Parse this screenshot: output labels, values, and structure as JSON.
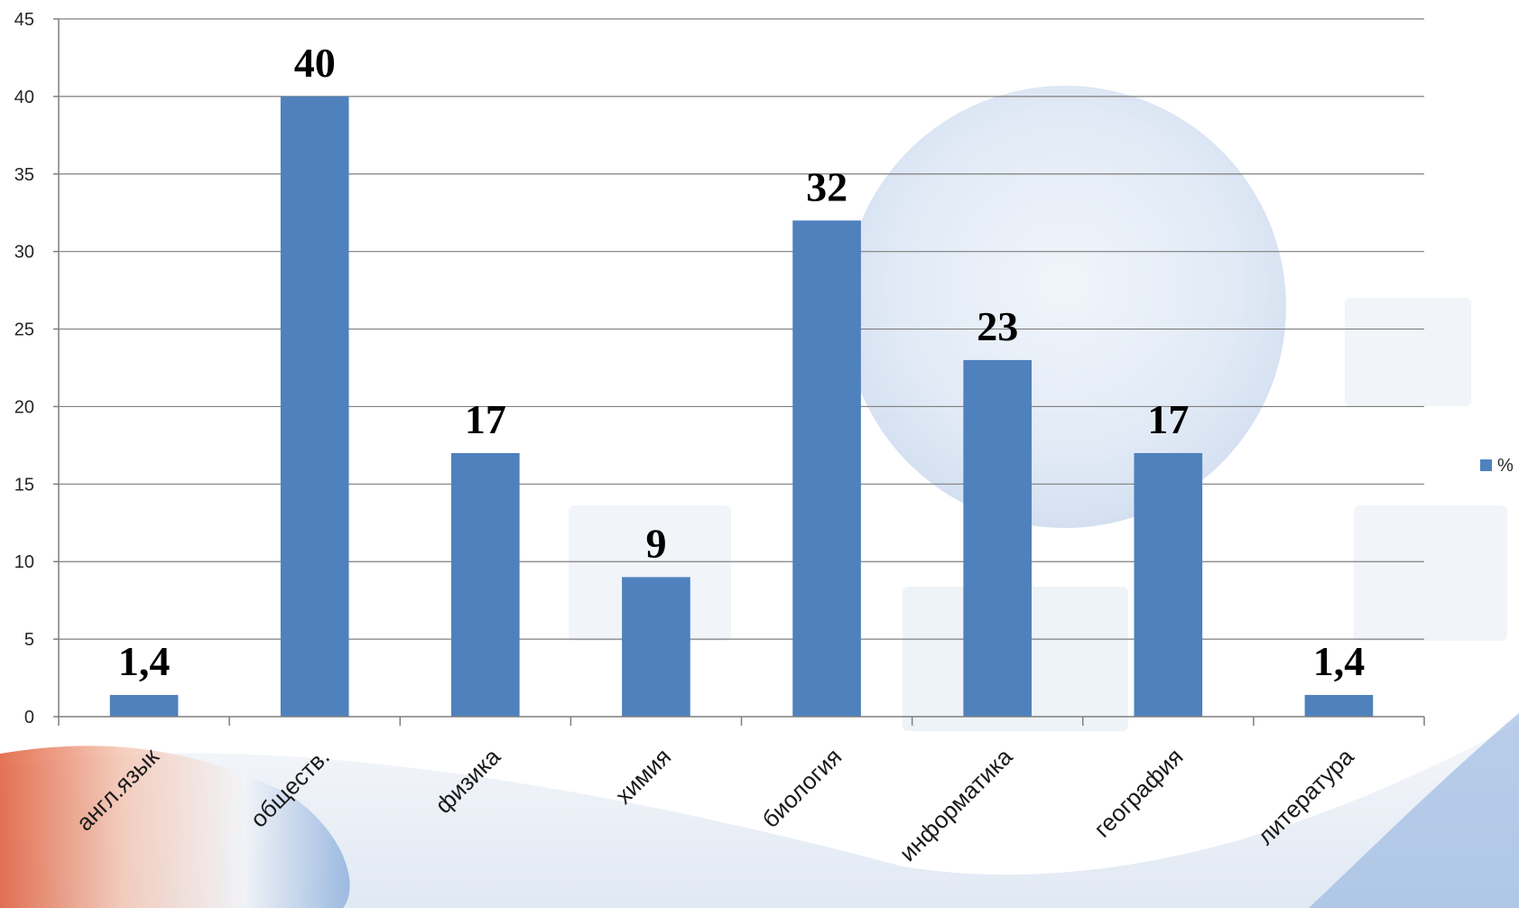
{
  "chart_data": {
    "type": "bar",
    "categories": [
      "англ.язык",
      "обществ.",
      "физика",
      "химия",
      "биология",
      "информатика",
      "география",
      "литература"
    ],
    "series": [
      {
        "name": "%",
        "values": [
          1.4,
          40,
          17,
          9,
          32,
          23,
          17,
          1.4
        ],
        "data_labels": [
          "1,4",
          "40",
          "17",
          "9",
          "32",
          "23",
          "17",
          "1,4"
        ],
        "color": "#4f81bd"
      }
    ],
    "title": "",
    "xlabel": "",
    "ylabel": "",
    "ylim": [
      0,
      45
    ],
    "yticks": [
      0,
      5,
      10,
      15,
      20,
      25,
      30,
      35,
      40,
      45
    ],
    "grid": true,
    "legend_position": "right"
  },
  "colors": {
    "bar": "#4f81bd",
    "gridline": "#7f7f7f",
    "axis": "#7f7f7f",
    "background_globe": "#c9d9ee",
    "background_swoosh": "#e2673f"
  }
}
